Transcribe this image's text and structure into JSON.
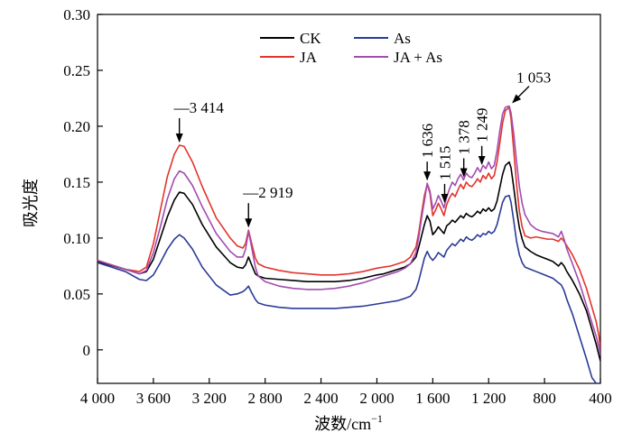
{
  "chart_data": {
    "type": "line",
    "title": "",
    "xlabel": "波数/cm",
    "xlabel_sup": "−1",
    "ylabel": "吸光度",
    "xlim": [
      4000,
      400
    ],
    "ylim": [
      -0.03,
      0.3
    ],
    "x_reversed": true,
    "grid": false,
    "legend_position": "top-center",
    "xticks": [
      {
        "value": 4000,
        "label": "4 000"
      },
      {
        "value": 3600,
        "label": "3 600"
      },
      {
        "value": 3200,
        "label": "3 200"
      },
      {
        "value": 2800,
        "label": "2 800"
      },
      {
        "value": 2400,
        "label": "2 400"
      },
      {
        "value": 2000,
        "label": "2 000"
      },
      {
        "value": 1600,
        "label": "1 600"
      },
      {
        "value": 1200,
        "label": "1 200"
      },
      {
        "value": 800,
        "label": "800"
      },
      {
        "value": 400,
        "label": "400"
      }
    ],
    "yticks": [
      {
        "value": 0,
        "label": "0"
      },
      {
        "value": 0.05,
        "label": "0.05"
      },
      {
        "value": 0.1,
        "label": "0.10"
      },
      {
        "value": 0.15,
        "label": "0.15"
      },
      {
        "value": 0.2,
        "label": "0.20"
      },
      {
        "value": 0.25,
        "label": "0.25"
      },
      {
        "value": 0.3,
        "label": "0.30"
      }
    ],
    "series": [
      {
        "name": "CK",
        "color": "#000000",
        "x": [
          4000,
          3800,
          3700,
          3650,
          3600,
          3550,
          3500,
          3450,
          3414,
          3380,
          3320,
          3250,
          3150,
          3050,
          3000,
          2960,
          2940,
          2919,
          2900,
          2870,
          2850,
          2800,
          2700,
          2600,
          2500,
          2400,
          2300,
          2200,
          2100,
          2000,
          1950,
          1900,
          1850,
          1800,
          1760,
          1720,
          1700,
          1680,
          1660,
          1640,
          1620,
          1600,
          1580,
          1560,
          1540,
          1520,
          1500,
          1480,
          1460,
          1440,
          1420,
          1400,
          1380,
          1360,
          1340,
          1320,
          1300,
          1280,
          1260,
          1240,
          1220,
          1200,
          1180,
          1160,
          1140,
          1120,
          1100,
          1080,
          1053,
          1040,
          1020,
          1000,
          980,
          960,
          940,
          900,
          860,
          820,
          780,
          740,
          700,
          680,
          660,
          640,
          600,
          550,
          500,
          460,
          430,
          410,
          400
        ],
        "y": [
          0.079,
          0.072,
          0.068,
          0.07,
          0.081,
          0.1,
          0.119,
          0.134,
          0.141,
          0.14,
          0.13,
          0.112,
          0.092,
          0.078,
          0.074,
          0.073,
          0.076,
          0.083,
          0.077,
          0.068,
          0.066,
          0.064,
          0.063,
          0.062,
          0.061,
          0.061,
          0.061,
          0.062,
          0.064,
          0.067,
          0.068,
          0.07,
          0.072,
          0.074,
          0.077,
          0.083,
          0.092,
          0.102,
          0.112,
          0.12,
          0.115,
          0.103,
          0.106,
          0.11,
          0.107,
          0.104,
          0.111,
          0.113,
          0.116,
          0.114,
          0.117,
          0.12,
          0.118,
          0.122,
          0.12,
          0.119,
          0.121,
          0.124,
          0.122,
          0.126,
          0.124,
          0.127,
          0.124,
          0.126,
          0.133,
          0.145,
          0.157,
          0.165,
          0.168,
          0.163,
          0.145,
          0.125,
          0.109,
          0.099,
          0.092,
          0.088,
          0.085,
          0.083,
          0.081,
          0.079,
          0.075,
          0.078,
          0.075,
          0.07,
          0.062,
          0.05,
          0.035,
          0.018,
          0.005,
          -0.005,
          -0.01
        ]
      },
      {
        "name": "JA",
        "color": "#e3342b",
        "x": [
          4000,
          3800,
          3700,
          3650,
          3600,
          3550,
          3500,
          3450,
          3414,
          3380,
          3320,
          3250,
          3150,
          3050,
          3000,
          2960,
          2940,
          2919,
          2900,
          2870,
          2850,
          2800,
          2700,
          2600,
          2500,
          2400,
          2300,
          2200,
          2100,
          2000,
          1950,
          1900,
          1850,
          1800,
          1760,
          1720,
          1700,
          1680,
          1660,
          1640,
          1620,
          1600,
          1580,
          1560,
          1540,
          1520,
          1500,
          1480,
          1460,
          1440,
          1420,
          1400,
          1380,
          1360,
          1340,
          1320,
          1300,
          1280,
          1260,
          1240,
          1220,
          1200,
          1180,
          1160,
          1140,
          1120,
          1100,
          1080,
          1053,
          1040,
          1020,
          1000,
          980,
          960,
          940,
          900,
          860,
          820,
          780,
          740,
          700,
          680,
          660,
          640,
          600,
          550,
          500,
          460,
          430,
          410,
          400
        ],
        "y": [
          0.08,
          0.072,
          0.07,
          0.074,
          0.095,
          0.125,
          0.155,
          0.175,
          0.183,
          0.182,
          0.168,
          0.146,
          0.118,
          0.1,
          0.093,
          0.091,
          0.095,
          0.107,
          0.097,
          0.082,
          0.077,
          0.074,
          0.071,
          0.069,
          0.068,
          0.067,
          0.067,
          0.068,
          0.07,
          0.073,
          0.074,
          0.075,
          0.077,
          0.079,
          0.083,
          0.092,
          0.105,
          0.122,
          0.138,
          0.148,
          0.14,
          0.12,
          0.125,
          0.131,
          0.126,
          0.12,
          0.13,
          0.136,
          0.14,
          0.137,
          0.143,
          0.148,
          0.144,
          0.15,
          0.147,
          0.146,
          0.149,
          0.153,
          0.15,
          0.156,
          0.153,
          0.158,
          0.153,
          0.156,
          0.168,
          0.185,
          0.203,
          0.214,
          0.217,
          0.207,
          0.178,
          0.148,
          0.124,
          0.11,
          0.102,
          0.1,
          0.101,
          0.1,
          0.099,
          0.099,
          0.097,
          0.1,
          0.097,
          0.093,
          0.085,
          0.072,
          0.055,
          0.038,
          0.025,
          0.012,
          0.0
        ]
      },
      {
        "name": "As",
        "color": "#2b3a96",
        "x": [
          4000,
          3800,
          3700,
          3650,
          3600,
          3550,
          3500,
          3450,
          3414,
          3380,
          3320,
          3250,
          3150,
          3050,
          3000,
          2960,
          2940,
          2919,
          2900,
          2870,
          2850,
          2800,
          2700,
          2600,
          2500,
          2400,
          2300,
          2200,
          2100,
          2000,
          1950,
          1900,
          1850,
          1800,
          1760,
          1720,
          1700,
          1680,
          1660,
          1640,
          1620,
          1600,
          1580,
          1560,
          1540,
          1520,
          1500,
          1480,
          1460,
          1440,
          1420,
          1400,
          1380,
          1360,
          1340,
          1320,
          1300,
          1280,
          1260,
          1240,
          1220,
          1200,
          1180,
          1160,
          1140,
          1120,
          1100,
          1080,
          1053,
          1040,
          1020,
          1000,
          980,
          960,
          940,
          900,
          860,
          820,
          780,
          740,
          700,
          680,
          660,
          640,
          600,
          550,
          500,
          460,
          430,
          410,
          400
        ],
        "y": [
          0.078,
          0.07,
          0.063,
          0.062,
          0.067,
          0.078,
          0.09,
          0.099,
          0.103,
          0.1,
          0.09,
          0.074,
          0.058,
          0.049,
          0.05,
          0.052,
          0.054,
          0.057,
          0.052,
          0.045,
          0.042,
          0.04,
          0.038,
          0.037,
          0.037,
          0.037,
          0.037,
          0.038,
          0.039,
          0.041,
          0.042,
          0.043,
          0.044,
          0.046,
          0.048,
          0.054,
          0.062,
          0.072,
          0.082,
          0.088,
          0.083,
          0.08,
          0.083,
          0.087,
          0.085,
          0.083,
          0.089,
          0.092,
          0.095,
          0.093,
          0.096,
          0.099,
          0.097,
          0.101,
          0.099,
          0.098,
          0.1,
          0.103,
          0.101,
          0.104,
          0.103,
          0.106,
          0.104,
          0.106,
          0.112,
          0.122,
          0.132,
          0.137,
          0.138,
          0.132,
          0.115,
          0.097,
          0.085,
          0.078,
          0.074,
          0.072,
          0.07,
          0.068,
          0.066,
          0.064,
          0.06,
          0.058,
          0.053,
          0.045,
          0.032,
          0.012,
          -0.008,
          -0.025,
          -0.03,
          -0.03,
          -0.03
        ]
      },
      {
        "name": "JA + As",
        "color": "#a24cb0",
        "x": [
          4000,
          3800,
          3700,
          3650,
          3600,
          3550,
          3500,
          3450,
          3414,
          3380,
          3320,
          3250,
          3150,
          3050,
          3000,
          2960,
          2940,
          2919,
          2900,
          2870,
          2850,
          2800,
          2700,
          2600,
          2500,
          2400,
          2300,
          2200,
          2100,
          2000,
          1950,
          1900,
          1850,
          1800,
          1760,
          1720,
          1700,
          1680,
          1660,
          1640,
          1620,
          1600,
          1580,
          1560,
          1540,
          1520,
          1500,
          1480,
          1460,
          1440,
          1420,
          1400,
          1380,
          1360,
          1340,
          1320,
          1300,
          1280,
          1260,
          1240,
          1220,
          1200,
          1180,
          1160,
          1140,
          1120,
          1100,
          1080,
          1053,
          1040,
          1020,
          1000,
          980,
          960,
          940,
          900,
          860,
          820,
          780,
          740,
          700,
          680,
          660,
          640,
          600,
          550,
          500,
          460,
          430,
          410,
          400
        ],
        "y": [
          0.08,
          0.072,
          0.068,
          0.071,
          0.087,
          0.11,
          0.135,
          0.153,
          0.16,
          0.158,
          0.147,
          0.128,
          0.104,
          0.088,
          0.083,
          0.083,
          0.09,
          0.106,
          0.094,
          0.074,
          0.066,
          0.061,
          0.057,
          0.055,
          0.054,
          0.054,
          0.055,
          0.057,
          0.06,
          0.064,
          0.066,
          0.068,
          0.07,
          0.073,
          0.077,
          0.087,
          0.101,
          0.118,
          0.133,
          0.149,
          0.142,
          0.126,
          0.131,
          0.138,
          0.133,
          0.127,
          0.137,
          0.144,
          0.15,
          0.147,
          0.153,
          0.157,
          0.152,
          0.158,
          0.155,
          0.154,
          0.158,
          0.163,
          0.159,
          0.165,
          0.162,
          0.168,
          0.162,
          0.165,
          0.178,
          0.196,
          0.211,
          0.217,
          0.218,
          0.212,
          0.193,
          0.168,
          0.146,
          0.131,
          0.121,
          0.112,
          0.108,
          0.106,
          0.105,
          0.104,
          0.101,
          0.106,
          0.099,
          0.09,
          0.077,
          0.06,
          0.04,
          0.024,
          0.012,
          0.002,
          -0.005
        ]
      }
    ],
    "annotations": [
      {
        "label": "3 414",
        "x": 3414,
        "y": 0.183,
        "dir": "down"
      },
      {
        "label": "2 919",
        "x": 2919,
        "y": 0.107,
        "dir": "down"
      },
      {
        "label": "1 636",
        "x": 1640,
        "y": 0.149,
        "dir": "down-rotated"
      },
      {
        "label": "1 515",
        "x": 1515,
        "y": 0.129,
        "dir": "down-rotated"
      },
      {
        "label": "1 378",
        "x": 1378,
        "y": 0.152,
        "dir": "down-rotated"
      },
      {
        "label": "1 249",
        "x": 1249,
        "y": 0.163,
        "dir": "down-rotated"
      },
      {
        "label": "1 053",
        "x": 1053,
        "y": 0.218,
        "dir": "diagonal"
      }
    ]
  }
}
